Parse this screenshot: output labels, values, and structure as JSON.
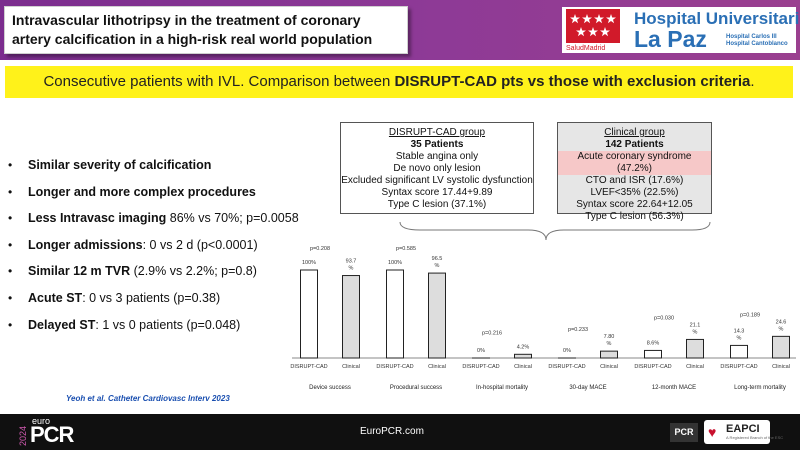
{
  "header": {
    "title": "Intravascular lithotripsy in the treatment of coronary artery calcification in a high-risk real world population",
    "logo_text_1": "Hospital Universitario",
    "logo_text_2": "La Paz",
    "logo_sub_1": "Hospital Carlos III",
    "logo_sub_2": "Hospital Cantoblanco",
    "logo_salud": "SaludMadrid",
    "brand_color": "#7b2d8e",
    "logo_blue": "#2a6fb5"
  },
  "banner": {
    "prefix": "Consecutive patients with IVL. Comparison between ",
    "bold": "DISRUPT-CAD pts vs those with exclusion criteria",
    "suffix": ".",
    "color": "#fff21a"
  },
  "bullets": [
    {
      "bold": "Similar severity of calcification",
      "rest": ""
    },
    {
      "bold": "Longer and more complex procedures",
      "rest": ""
    },
    {
      "bold": "Less Intravasc imaging",
      "rest": " 86% vs 70%; p=0.0058"
    },
    {
      "bold": "Longer admissions",
      "rest": ": 0 vs 2 d (p<0.0001)"
    },
    {
      "bold": "Similar 12 m TVR",
      "rest": " (2.9% vs 2.2%; p=0.8)"
    },
    {
      "bold": "Acute ST",
      "rest": ": 0 vs 3 patients (p=0.38)"
    },
    {
      "bold": "Delayed ST",
      "rest": ": 1 vs 0 patients (p=0.048)"
    }
  ],
  "citation": "Yeoh et al. Catheter Cardiovasc Interv 2023",
  "groups": {
    "disrupt": {
      "title": "DISRUPT-CAD group",
      "count": "35 Patients",
      "lines": [
        "Stable angina only",
        "De novo only lesion",
        "Excluded significant LV systolic dysfunction",
        "Syntax score 17.44+9.89",
        "Type C lesion (37.1%)"
      ]
    },
    "clinical": {
      "title": "Clinical group",
      "count": "142 Patients",
      "highlight": "Acute coronary syndrome (47.2%)",
      "lines": [
        "CTO and ISR (17.6%)",
        "LVEF<35% (22.5%)",
        "Syntax score 22.64+12.05",
        "Type C lesion (56.3%)"
      ],
      "highlight_color": "#f6c8c8"
    }
  },
  "chart_data": {
    "type": "bar",
    "categories": [
      "Device success",
      "Procedural success",
      "In-hospital mortality",
      "30-day MACE",
      "12-month MACE",
      "Long-term mortality"
    ],
    "bar_labels": [
      "DISRUPT-CAD",
      "Clinical"
    ],
    "series": [
      {
        "values": [
          100,
          100,
          0,
          0,
          8.6,
          14.3
        ],
        "labels": [
          "100%",
          "100%",
          "0%",
          "0%",
          "8.6%",
          "14.3 %"
        ],
        "color": "#ffffff"
      },
      {
        "values": [
          93.7,
          96.5,
          4.2,
          7.8,
          21.1,
          24.6
        ],
        "labels": [
          "93.7 %",
          "96.5 %",
          "4.2%",
          "7.80 %",
          "21.1 %",
          "24.6 %"
        ],
        "color": "#dddddd"
      }
    ],
    "pvalues": [
      "p=0.208",
      "p=0.585",
      "p=0.216",
      "p=0.233",
      "p=0.030",
      "p=0.189"
    ],
    "ylim": [
      0,
      100
    ],
    "grid": false
  },
  "footer": {
    "url": "EuroPCR.com",
    "euro": "euro",
    "pcr": "PCR",
    "year": "2024",
    "pcr_badge": "PCR",
    "eapci": "EAPCI",
    "eapci_sub": "A Registered Branch of the ESC"
  }
}
